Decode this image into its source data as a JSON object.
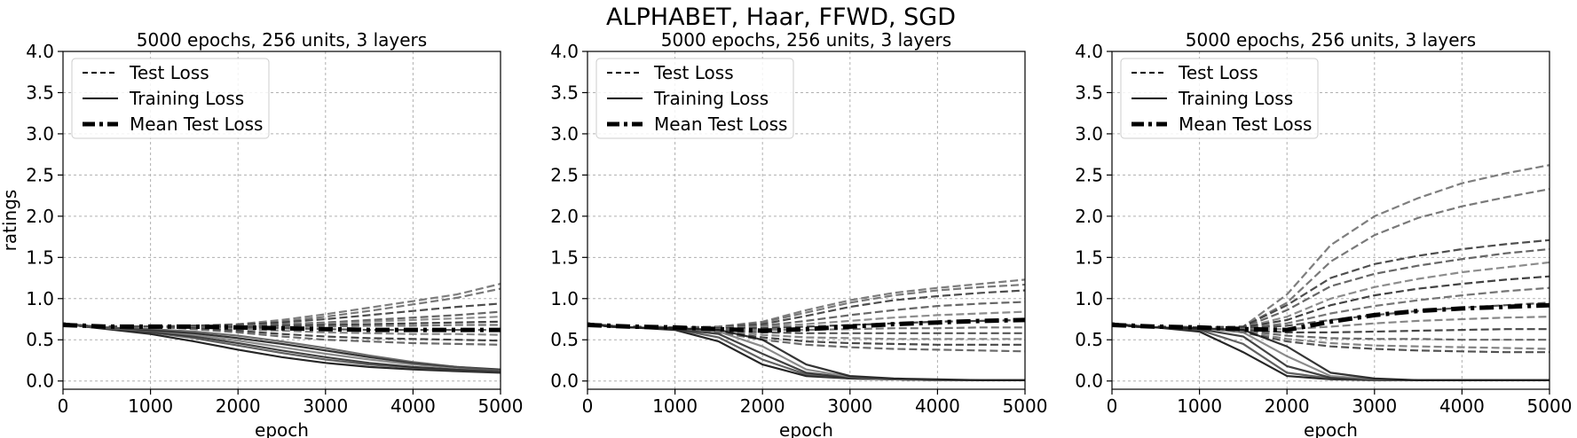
{
  "figure": {
    "suptitle": "ALPHABET, Haar, FFWD, SGD"
  },
  "chart_data": [
    {
      "type": "line",
      "title": "5000 epochs, 256 units, 3 layers",
      "xlabel": "epoch",
      "ylabel": "ratings",
      "xlim": [
        0,
        5000
      ],
      "ylim": [
        -0.1,
        4.0
      ],
      "xticks": [
        "0",
        "1000",
        "2000",
        "3000",
        "4000",
        "5000"
      ],
      "yticks": [
        "0.0",
        "0.5",
        "1.0",
        "1.5",
        "2.0",
        "2.5",
        "3.0",
        "3.5",
        "4.0"
      ],
      "grid": true,
      "legend": {
        "placement": "top-left",
        "entries": [
          "Test Loss",
          "Training Loss",
          "Mean Test Loss"
        ]
      },
      "x": [
        0,
        250,
        500,
        1000,
        1500,
        2000,
        2500,
        3000,
        3500,
        4000,
        4500,
        5000
      ],
      "test_loss_series": [
        [
          0.7,
          0.67,
          0.66,
          0.66,
          0.67,
          0.69,
          0.74,
          0.81,
          0.89,
          0.97,
          1.05,
          1.18
        ],
        [
          0.7,
          0.67,
          0.66,
          0.66,
          0.67,
          0.68,
          0.72,
          0.78,
          0.85,
          0.93,
          1.01,
          1.12
        ],
        [
          0.7,
          0.67,
          0.66,
          0.66,
          0.67,
          0.68,
          0.71,
          0.75,
          0.8,
          0.85,
          0.9,
          0.94
        ],
        [
          0.7,
          0.67,
          0.66,
          0.66,
          0.66,
          0.67,
          0.69,
          0.71,
          0.74,
          0.77,
          0.8,
          0.84
        ],
        [
          0.7,
          0.67,
          0.66,
          0.66,
          0.66,
          0.67,
          0.68,
          0.7,
          0.72,
          0.74,
          0.76,
          0.78
        ],
        [
          0.7,
          0.67,
          0.66,
          0.66,
          0.66,
          0.66,
          0.67,
          0.68,
          0.69,
          0.7,
          0.71,
          0.72
        ],
        [
          0.7,
          0.67,
          0.66,
          0.66,
          0.66,
          0.66,
          0.66,
          0.66,
          0.67,
          0.67,
          0.68,
          0.68
        ],
        [
          0.7,
          0.67,
          0.66,
          0.66,
          0.66,
          0.65,
          0.64,
          0.63,
          0.62,
          0.62,
          0.62,
          0.62
        ],
        [
          0.7,
          0.67,
          0.66,
          0.66,
          0.65,
          0.63,
          0.61,
          0.59,
          0.58,
          0.57,
          0.57,
          0.56
        ],
        [
          0.7,
          0.67,
          0.66,
          0.66,
          0.64,
          0.61,
          0.57,
          0.54,
          0.52,
          0.51,
          0.5,
          0.49
        ],
        [
          0.7,
          0.67,
          0.66,
          0.66,
          0.63,
          0.59,
          0.54,
          0.5,
          0.48,
          0.46,
          0.45,
          0.44
        ]
      ],
      "training_loss_series": [
        [
          0.7,
          0.66,
          0.63,
          0.57,
          0.48,
          0.38,
          0.29,
          0.22,
          0.17,
          0.14,
          0.12,
          0.1
        ],
        [
          0.7,
          0.66,
          0.64,
          0.59,
          0.52,
          0.43,
          0.34,
          0.26,
          0.2,
          0.16,
          0.13,
          0.11
        ],
        [
          0.7,
          0.66,
          0.64,
          0.6,
          0.54,
          0.46,
          0.37,
          0.29,
          0.22,
          0.17,
          0.14,
          0.12
        ],
        [
          0.7,
          0.66,
          0.64,
          0.61,
          0.56,
          0.49,
          0.41,
          0.33,
          0.26,
          0.2,
          0.16,
          0.13
        ],
        [
          0.7,
          0.66,
          0.65,
          0.62,
          0.58,
          0.52,
          0.45,
          0.37,
          0.29,
          0.22,
          0.17,
          0.14
        ],
        [
          0.7,
          0.66,
          0.65,
          0.63,
          0.6,
          0.55,
          0.48,
          0.4,
          0.31,
          0.23,
          0.17,
          0.13
        ]
      ],
      "mean_test_loss": [
        0.68,
        0.67,
        0.66,
        0.66,
        0.66,
        0.65,
        0.64,
        0.63,
        0.62,
        0.62,
        0.62,
        0.62
      ]
    },
    {
      "type": "line",
      "title": "5000 epochs, 256 units, 3 layers",
      "xlabel": "epoch",
      "ylabel": "",
      "xlim": [
        0,
        5000
      ],
      "ylim": [
        -0.1,
        4.0
      ],
      "xticks": [
        "0",
        "1000",
        "2000",
        "3000",
        "4000",
        "5000"
      ],
      "yticks": [
        "0.0",
        "0.5",
        "1.0",
        "1.5",
        "2.0",
        "2.5",
        "3.0",
        "3.5",
        "4.0"
      ],
      "grid": true,
      "legend": {
        "placement": "top-left",
        "entries": [
          "Test Loss",
          "Training Loss",
          "Mean Test Loss"
        ]
      },
      "x": [
        0,
        250,
        500,
        1000,
        1500,
        2000,
        2500,
        3000,
        3500,
        4000,
        4500,
        5000
      ],
      "test_loss_series": [
        [
          0.7,
          0.67,
          0.66,
          0.65,
          0.66,
          0.72,
          0.86,
          0.98,
          1.07,
          1.13,
          1.18,
          1.23
        ],
        [
          0.7,
          0.67,
          0.66,
          0.65,
          0.66,
          0.71,
          0.83,
          0.95,
          1.04,
          1.1,
          1.14,
          1.17
        ],
        [
          0.7,
          0.67,
          0.66,
          0.65,
          0.65,
          0.69,
          0.79,
          0.9,
          0.98,
          1.03,
          1.07,
          1.1
        ],
        [
          0.7,
          0.67,
          0.66,
          0.65,
          0.65,
          0.67,
          0.73,
          0.8,
          0.86,
          0.91,
          0.94,
          0.96
        ],
        [
          0.7,
          0.67,
          0.66,
          0.65,
          0.65,
          0.66,
          0.69,
          0.73,
          0.77,
          0.8,
          0.82,
          0.84
        ],
        [
          0.7,
          0.67,
          0.66,
          0.65,
          0.64,
          0.64,
          0.66,
          0.68,
          0.7,
          0.72,
          0.73,
          0.74
        ],
        [
          0.7,
          0.67,
          0.66,
          0.65,
          0.63,
          0.62,
          0.62,
          0.63,
          0.64,
          0.64,
          0.65,
          0.65
        ],
        [
          0.7,
          0.67,
          0.66,
          0.65,
          0.62,
          0.59,
          0.58,
          0.58,
          0.58,
          0.58,
          0.58,
          0.58
        ],
        [
          0.7,
          0.67,
          0.66,
          0.65,
          0.61,
          0.56,
          0.53,
          0.52,
          0.51,
          0.51,
          0.51,
          0.51
        ],
        [
          0.7,
          0.67,
          0.66,
          0.65,
          0.6,
          0.53,
          0.48,
          0.46,
          0.45,
          0.44,
          0.44,
          0.44
        ],
        [
          0.7,
          0.67,
          0.66,
          0.65,
          0.59,
          0.5,
          0.44,
          0.41,
          0.39,
          0.38,
          0.37,
          0.36
        ]
      ],
      "training_loss_series": [
        [
          0.7,
          0.66,
          0.65,
          0.62,
          0.48,
          0.2,
          0.06,
          0.03,
          0.02,
          0.01,
          0.01,
          0.01
        ],
        [
          0.7,
          0.66,
          0.65,
          0.63,
          0.53,
          0.26,
          0.08,
          0.03,
          0.02,
          0.01,
          0.01,
          0.01
        ],
        [
          0.7,
          0.66,
          0.65,
          0.63,
          0.57,
          0.33,
          0.1,
          0.04,
          0.02,
          0.01,
          0.01,
          0.01
        ],
        [
          0.7,
          0.66,
          0.65,
          0.64,
          0.6,
          0.42,
          0.14,
          0.05,
          0.02,
          0.01,
          0.01,
          0.01
        ],
        [
          0.7,
          0.66,
          0.65,
          0.64,
          0.62,
          0.5,
          0.2,
          0.06,
          0.03,
          0.02,
          0.01,
          0.01
        ]
      ],
      "mean_test_loss": [
        0.68,
        0.67,
        0.66,
        0.65,
        0.63,
        0.61,
        0.63,
        0.66,
        0.69,
        0.71,
        0.73,
        0.74
      ]
    },
    {
      "type": "line",
      "title": "5000 epochs, 256 units, 3 layers",
      "xlabel": "epoch",
      "ylabel": "",
      "xlim": [
        0,
        5000
      ],
      "ylim": [
        -0.1,
        4.0
      ],
      "xticks": [
        "0",
        "1000",
        "2000",
        "3000",
        "4000",
        "5000"
      ],
      "yticks": [
        "0.0",
        "0.5",
        "1.0",
        "1.5",
        "2.0",
        "2.5",
        "3.0",
        "3.5",
        "4.0"
      ],
      "grid": true,
      "legend": {
        "placement": "top-left",
        "entries": [
          "Test Loss",
          "Training Loss",
          "Mean Test Loss"
        ]
      },
      "x": [
        0,
        250,
        500,
        1000,
        1500,
        2000,
        2500,
        3000,
        3500,
        4000,
        4500,
        5000
      ],
      "test_loss_series": [
        [
          0.7,
          0.67,
          0.66,
          0.65,
          0.66,
          1.05,
          1.65,
          2.0,
          2.22,
          2.4,
          2.52,
          2.62
        ],
        [
          0.7,
          0.67,
          0.66,
          0.65,
          0.66,
          0.95,
          1.45,
          1.77,
          1.98,
          2.12,
          2.23,
          2.33
        ],
        [
          0.7,
          0.67,
          0.66,
          0.65,
          0.66,
          0.92,
          1.25,
          1.42,
          1.52,
          1.6,
          1.66,
          1.71
        ],
        [
          0.7,
          0.67,
          0.66,
          0.65,
          0.65,
          0.86,
          1.15,
          1.3,
          1.4,
          1.48,
          1.55,
          1.6
        ],
        [
          0.7,
          0.67,
          0.66,
          0.65,
          0.65,
          0.78,
          1.0,
          1.14,
          1.24,
          1.32,
          1.38,
          1.44
        ],
        [
          0.7,
          0.67,
          0.66,
          0.65,
          0.65,
          0.74,
          0.92,
          1.04,
          1.12,
          1.18,
          1.23,
          1.27
        ],
        [
          0.7,
          0.67,
          0.66,
          0.65,
          0.64,
          0.7,
          0.82,
          0.91,
          0.98,
          1.04,
          1.09,
          1.13
        ],
        [
          0.7,
          0.67,
          0.66,
          0.65,
          0.64,
          0.67,
          0.74,
          0.8,
          0.85,
          0.89,
          0.92,
          0.95
        ],
        [
          0.7,
          0.67,
          0.66,
          0.65,
          0.63,
          0.63,
          0.66,
          0.7,
          0.73,
          0.75,
          0.77,
          0.78
        ],
        [
          0.7,
          0.67,
          0.66,
          0.65,
          0.62,
          0.59,
          0.59,
          0.6,
          0.61,
          0.62,
          0.63,
          0.63
        ],
        [
          0.7,
          0.67,
          0.66,
          0.65,
          0.61,
          0.55,
          0.52,
          0.51,
          0.51,
          0.5,
          0.5,
          0.5
        ],
        [
          0.7,
          0.67,
          0.66,
          0.65,
          0.6,
          0.51,
          0.46,
          0.43,
          0.42,
          0.41,
          0.4,
          0.39
        ],
        [
          0.7,
          0.67,
          0.66,
          0.65,
          0.59,
          0.48,
          0.42,
          0.39,
          0.37,
          0.36,
          0.35,
          0.35
        ]
      ],
      "training_loss_series": [
        [
          0.7,
          0.66,
          0.65,
          0.6,
          0.35,
          0.06,
          0.02,
          0.01,
          0.01,
          0.01,
          0.01,
          0.01
        ],
        [
          0.7,
          0.66,
          0.65,
          0.62,
          0.45,
          0.1,
          0.03,
          0.01,
          0.01,
          0.01,
          0.01,
          0.01
        ],
        [
          0.7,
          0.66,
          0.65,
          0.63,
          0.54,
          0.18,
          0.04,
          0.02,
          0.01,
          0.01,
          0.01,
          0.01
        ],
        [
          0.7,
          0.66,
          0.65,
          0.64,
          0.59,
          0.3,
          0.06,
          0.02,
          0.01,
          0.01,
          0.01,
          0.01
        ],
        [
          0.7,
          0.66,
          0.65,
          0.64,
          0.62,
          0.42,
          0.1,
          0.03,
          0.01,
          0.01,
          0.01,
          0.01
        ]
      ],
      "mean_test_loss": [
        0.68,
        0.67,
        0.66,
        0.65,
        0.63,
        0.62,
        0.72,
        0.8,
        0.85,
        0.88,
        0.9,
        0.92
      ]
    }
  ]
}
